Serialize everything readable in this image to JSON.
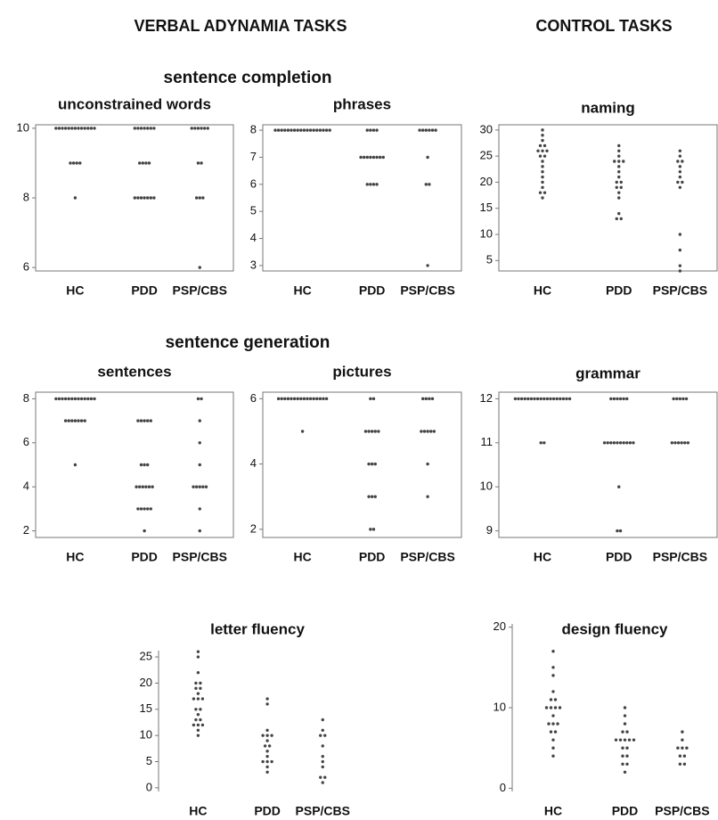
{
  "headings": [
    "VERBAL ADYNAMIA TASKS",
    "CONTROL TASKS",
    "sentence completion",
    "sentence generation"
  ],
  "chart_data": [
    {
      "type": "dot",
      "title": "unconstrained words",
      "categories": [
        "HC",
        "PDD",
        "PSP/CBS"
      ],
      "frame": true,
      "ylim": [
        5.9,
        10.1
      ],
      "yticks": [
        6,
        8,
        10
      ],
      "values": [
        [
          10,
          10,
          10,
          10,
          10,
          10,
          10,
          10,
          10,
          10,
          10,
          10,
          10,
          9,
          9,
          9,
          9,
          8
        ],
        [
          10,
          10,
          10,
          10,
          10,
          10,
          10,
          9,
          9,
          9,
          9,
          8,
          8,
          8,
          8,
          8,
          8,
          8
        ],
        [
          10,
          10,
          10,
          10,
          10,
          10,
          9,
          9,
          8,
          8,
          8,
          6
        ]
      ]
    },
    {
      "type": "dot",
      "title": "phrases",
      "categories": [
        "HC",
        "PDD",
        "PSP/CBS"
      ],
      "frame": true,
      "ylim": [
        2.8,
        8.2
      ],
      "yticks": [
        3,
        4,
        5,
        6,
        7,
        8
      ],
      "values": [
        [
          8,
          8,
          8,
          8,
          8,
          8,
          8,
          8,
          8,
          8,
          8,
          8,
          8,
          8,
          8,
          8,
          8,
          8
        ],
        [
          8,
          8,
          8,
          8,
          7,
          7,
          7,
          7,
          7,
          7,
          7,
          7,
          6,
          6,
          6,
          6
        ],
        [
          8,
          8,
          8,
          8,
          8,
          8,
          7,
          6,
          6,
          3
        ]
      ]
    },
    {
      "type": "dot",
      "title": "naming",
      "categories": [
        "HC",
        "PDD",
        "PSP/CBS"
      ],
      "frame": true,
      "ylim": [
        3,
        31
      ],
      "yticks": [
        5,
        10,
        15,
        20,
        25,
        30
      ],
      "values": [
        [
          30,
          29,
          28,
          27,
          26,
          25,
          24,
          23,
          22,
          21,
          20,
          19,
          18,
          17,
          27,
          26,
          25,
          18,
          26
        ],
        [
          27,
          26,
          25,
          24,
          23,
          22,
          21,
          20,
          19,
          18,
          17,
          14,
          13,
          24,
          20,
          19,
          13,
          24
        ],
        [
          26,
          25,
          24,
          23,
          22,
          21,
          20,
          19,
          10,
          7,
          4,
          3,
          24,
          20
        ]
      ]
    },
    {
      "type": "dot",
      "title": "sentences",
      "categories": [
        "HC",
        "PDD",
        "PSP/CBS"
      ],
      "frame": true,
      "ylim": [
        1.7,
        8.3
      ],
      "yticks": [
        2,
        4,
        6,
        8
      ],
      "values": [
        [
          8,
          8,
          8,
          8,
          8,
          8,
          8,
          8,
          8,
          8,
          8,
          8,
          8,
          7,
          7,
          7,
          7,
          7,
          7,
          7,
          5
        ],
        [
          7,
          7,
          7,
          7,
          7,
          5,
          5,
          5,
          4,
          4,
          4,
          4,
          4,
          4,
          3,
          3,
          3,
          3,
          3,
          2
        ],
        [
          8,
          8,
          7,
          6,
          5,
          4,
          4,
          4,
          4,
          4,
          3,
          2
        ]
      ]
    },
    {
      "type": "dot",
      "title": "pictures",
      "categories": [
        "HC",
        "PDD",
        "PSP/CBS"
      ],
      "frame": true,
      "ylim": [
        1.75,
        6.2
      ],
      "yticks": [
        2,
        4,
        6
      ],
      "values": [
        [
          6,
          6,
          6,
          6,
          6,
          6,
          6,
          6,
          6,
          6,
          6,
          6,
          6,
          6,
          6,
          6,
          5
        ],
        [
          6,
          6,
          5,
          5,
          5,
          5,
          5,
          4,
          4,
          4,
          3,
          3,
          3,
          2,
          2
        ],
        [
          6,
          6,
          6,
          6,
          5,
          5,
          5,
          5,
          5,
          4,
          3
        ]
      ]
    },
    {
      "type": "dot",
      "title": "grammar",
      "categories": [
        "HC",
        "PDD",
        "PSP/CBS"
      ],
      "frame": true,
      "ylim": [
        8.85,
        12.15
      ],
      "yticks": [
        9,
        10,
        11,
        12
      ],
      "values": [
        [
          12,
          12,
          12,
          12,
          12,
          12,
          12,
          12,
          12,
          12,
          12,
          12,
          12,
          12,
          12,
          12,
          12,
          12,
          11,
          11
        ],
        [
          12,
          12,
          12,
          12,
          12,
          12,
          11,
          11,
          11,
          11,
          11,
          11,
          11,
          11,
          11,
          11,
          10,
          9,
          9
        ],
        [
          12,
          12,
          12,
          12,
          12,
          11,
          11,
          11,
          11,
          11,
          11
        ]
      ]
    },
    {
      "type": "dot",
      "title": "letter fluency",
      "categories": [
        "HC",
        "PDD",
        "PSP/CBS"
      ],
      "frame": false,
      "ylim": [
        -0.7,
        26.2
      ],
      "yticks": [
        0,
        5,
        10,
        15,
        20,
        25
      ],
      "values": [
        [
          26,
          25,
          22,
          20,
          18,
          17,
          15,
          14,
          13,
          12,
          11,
          10,
          20,
          19,
          17,
          15,
          13,
          12,
          19,
          17,
          12
        ],
        [
          17,
          16,
          11,
          10,
          9,
          8,
          7,
          6,
          5,
          4,
          3,
          10,
          8,
          5,
          10,
          5
        ],
        [
          13,
          11,
          10,
          8,
          6,
          5,
          4,
          2,
          1,
          10,
          2
        ]
      ]
    },
    {
      "type": "dot",
      "title": "design fluency",
      "categories": [
        "HC",
        "PDD",
        "PSP/CBS"
      ],
      "frame": false,
      "ylim": [
        -0.4,
        20.4
      ],
      "yticks": [
        0,
        10,
        20
      ],
      "values": [
        [
          17,
          15,
          14,
          12,
          11,
          10,
          9,
          8,
          7,
          6,
          5,
          4,
          11,
          10,
          8,
          7,
          10,
          8,
          10
        ],
        [
          10,
          9,
          8,
          7,
          6,
          5,
          4,
          3,
          2,
          7,
          6,
          5,
          4,
          3,
          6,
          6,
          6
        ],
        [
          7,
          6,
          5,
          4,
          3,
          5,
          4,
          3,
          5
        ]
      ]
    }
  ]
}
